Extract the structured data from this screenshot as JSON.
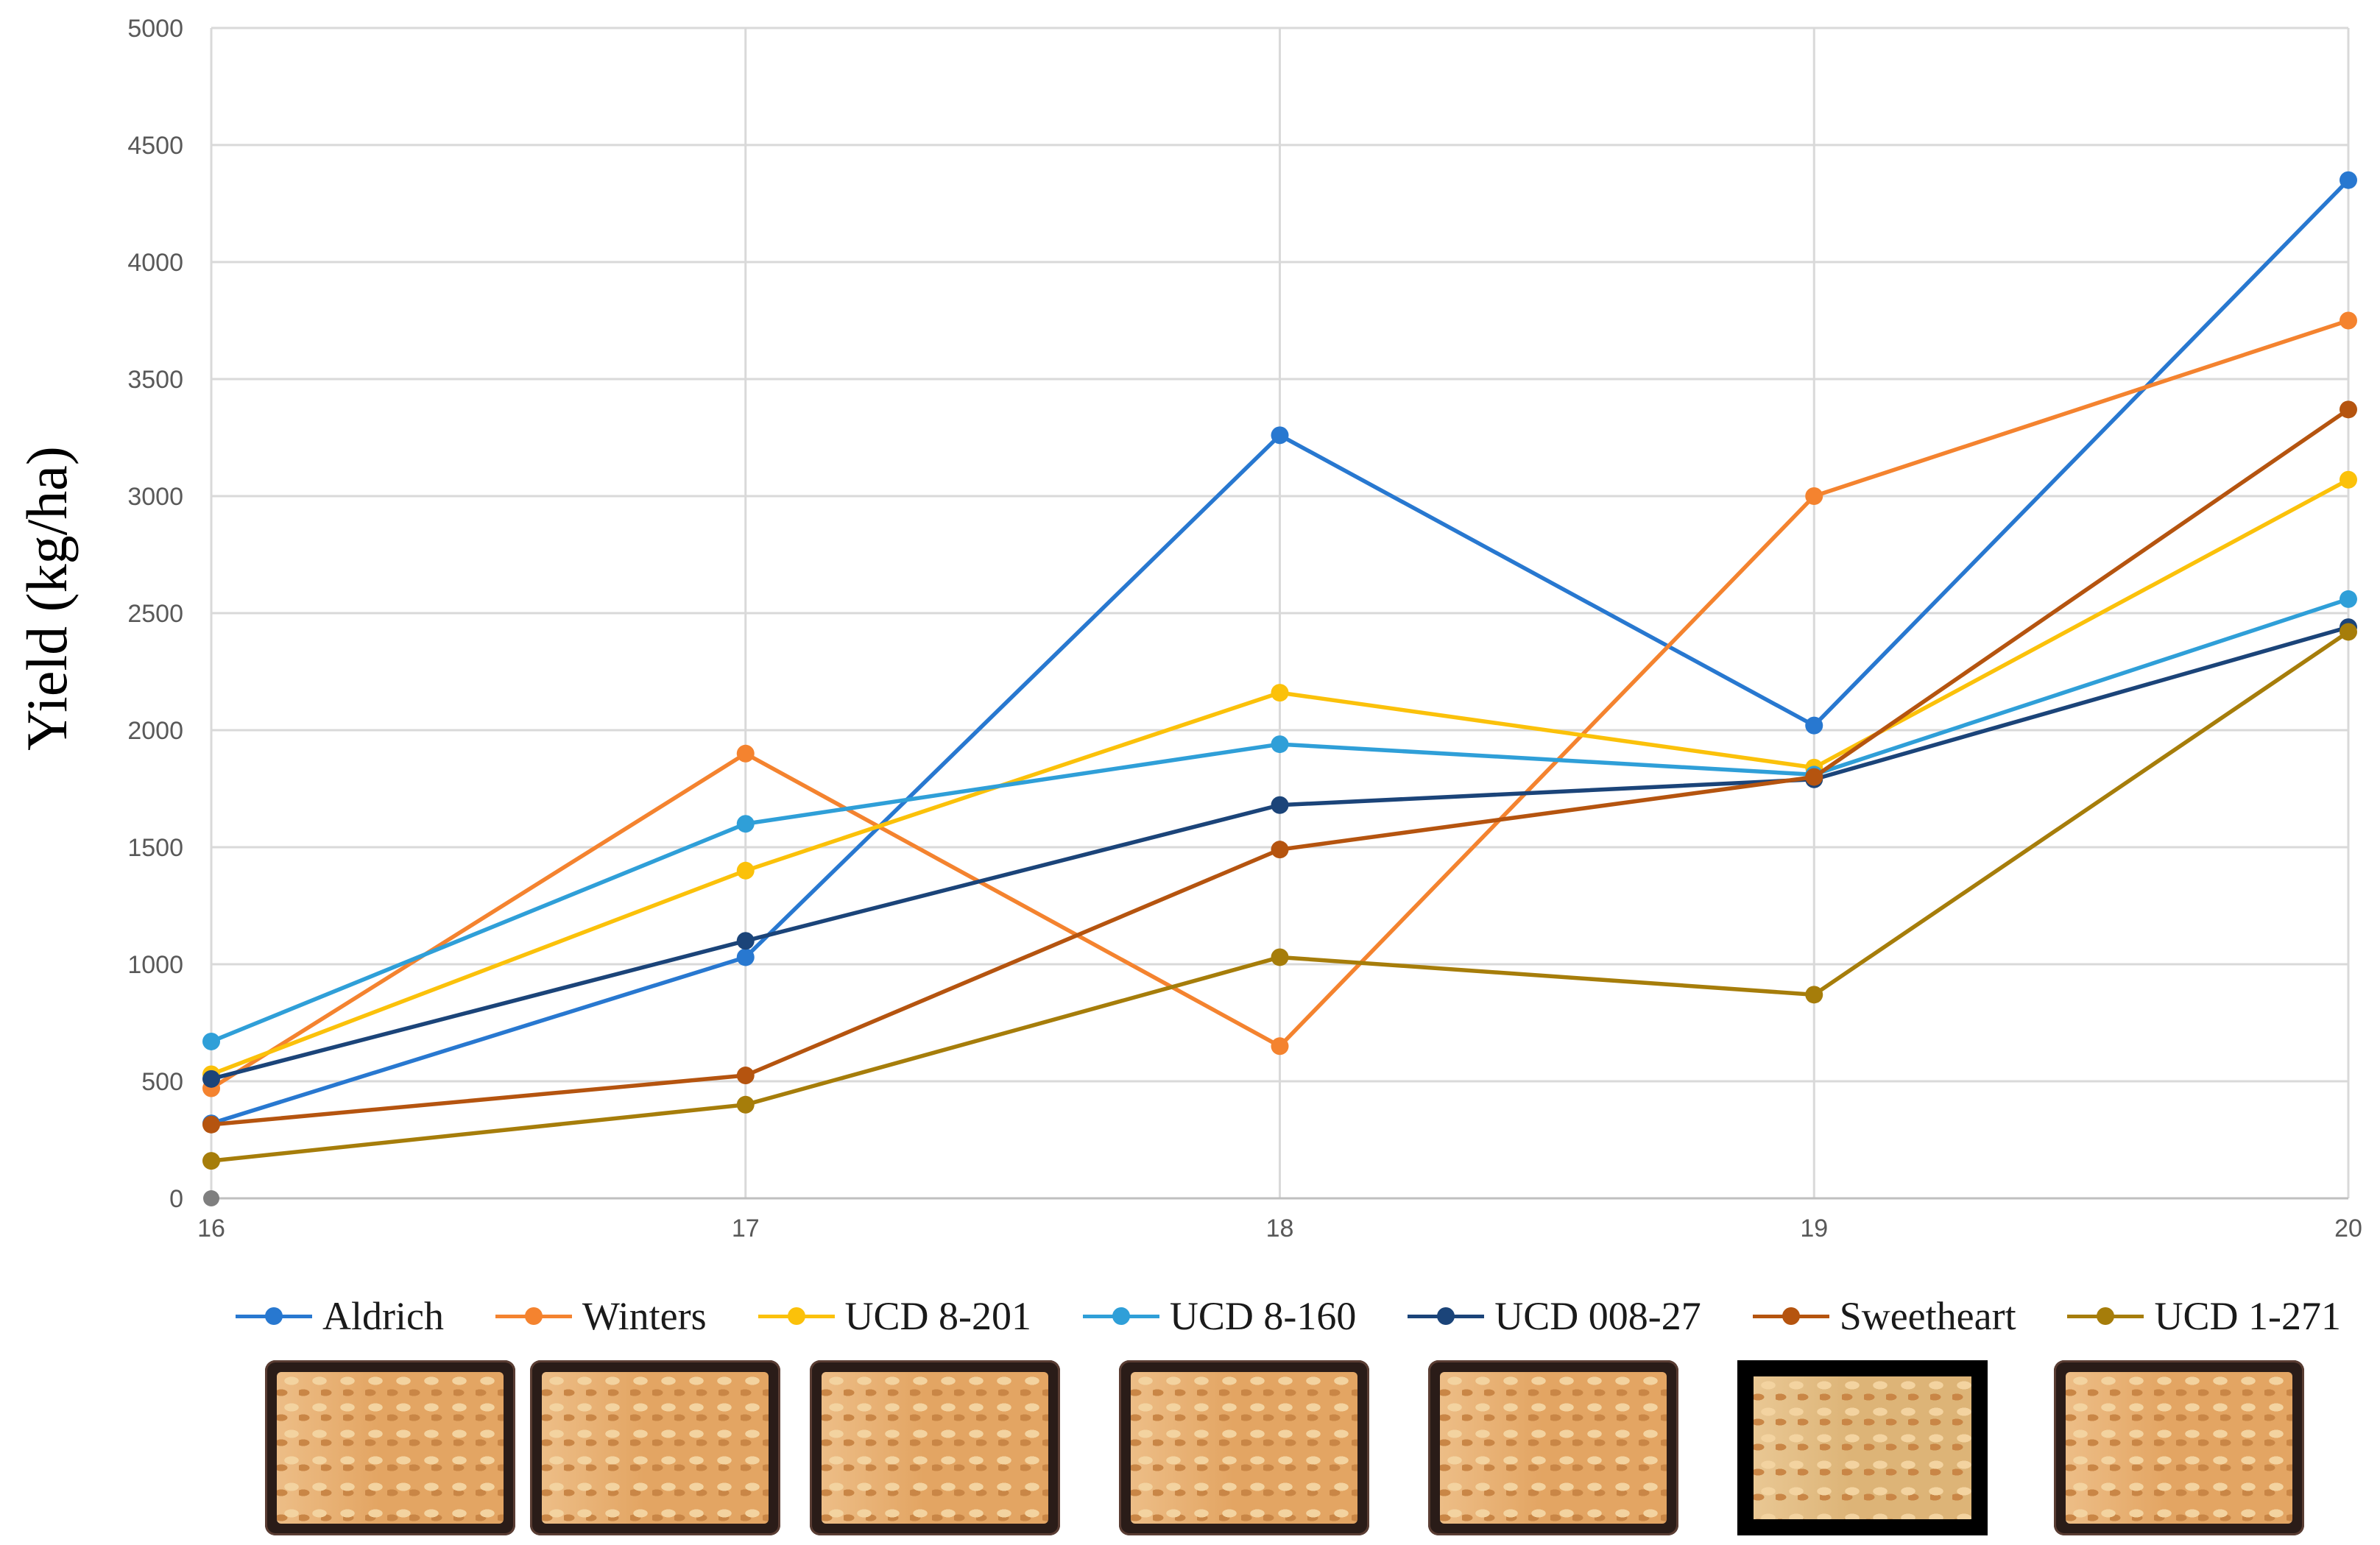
{
  "chart_data": {
    "type": "line",
    "title": "",
    "xlabel": "",
    "ylabel": "Yield (kg/ha)",
    "x": [
      16,
      17,
      18,
      19,
      20
    ],
    "x_tick_labels": [
      "16",
      "17",
      "18",
      "19",
      "20"
    ],
    "ylim": [
      0,
      5000
    ],
    "y_ticks": [
      0,
      500,
      1000,
      1500,
      2000,
      2500,
      3000,
      3500,
      4000,
      4500,
      5000
    ],
    "grid": true,
    "legend_position": "bottom",
    "extra_points": [
      {
        "x": 16,
        "y": 0,
        "color": "#7f7f7f"
      }
    ],
    "series": [
      {
        "name": "Aldrich",
        "color": "#2878d0",
        "values": [
          320,
          1030,
          3260,
          2020,
          4350
        ]
      },
      {
        "name": "Winters",
        "color": "#f4832f",
        "values": [
          470,
          1900,
          650,
          3000,
          3750
        ]
      },
      {
        "name": "UCD 8-201",
        "color": "#fbc10a",
        "values": [
          530,
          1400,
          2160,
          1840,
          3070
        ]
      },
      {
        "name": "UCD 8-160",
        "color": "#2f9fd8",
        "values": [
          670,
          1600,
          1940,
          1810,
          2560
        ]
      },
      {
        "name": "UCD 008-27",
        "color": "#1b4479",
        "values": [
          510,
          1100,
          1680,
          1790,
          2440
        ]
      },
      {
        "name": "Sweetheart",
        "color": "#b5540f",
        "values": [
          315,
          525,
          1490,
          1800,
          3370
        ]
      },
      {
        "name": "UCD 1-271",
        "color": "#a67d0a",
        "values": [
          160,
          400,
          1030,
          870,
          2420
        ]
      }
    ]
  }
}
